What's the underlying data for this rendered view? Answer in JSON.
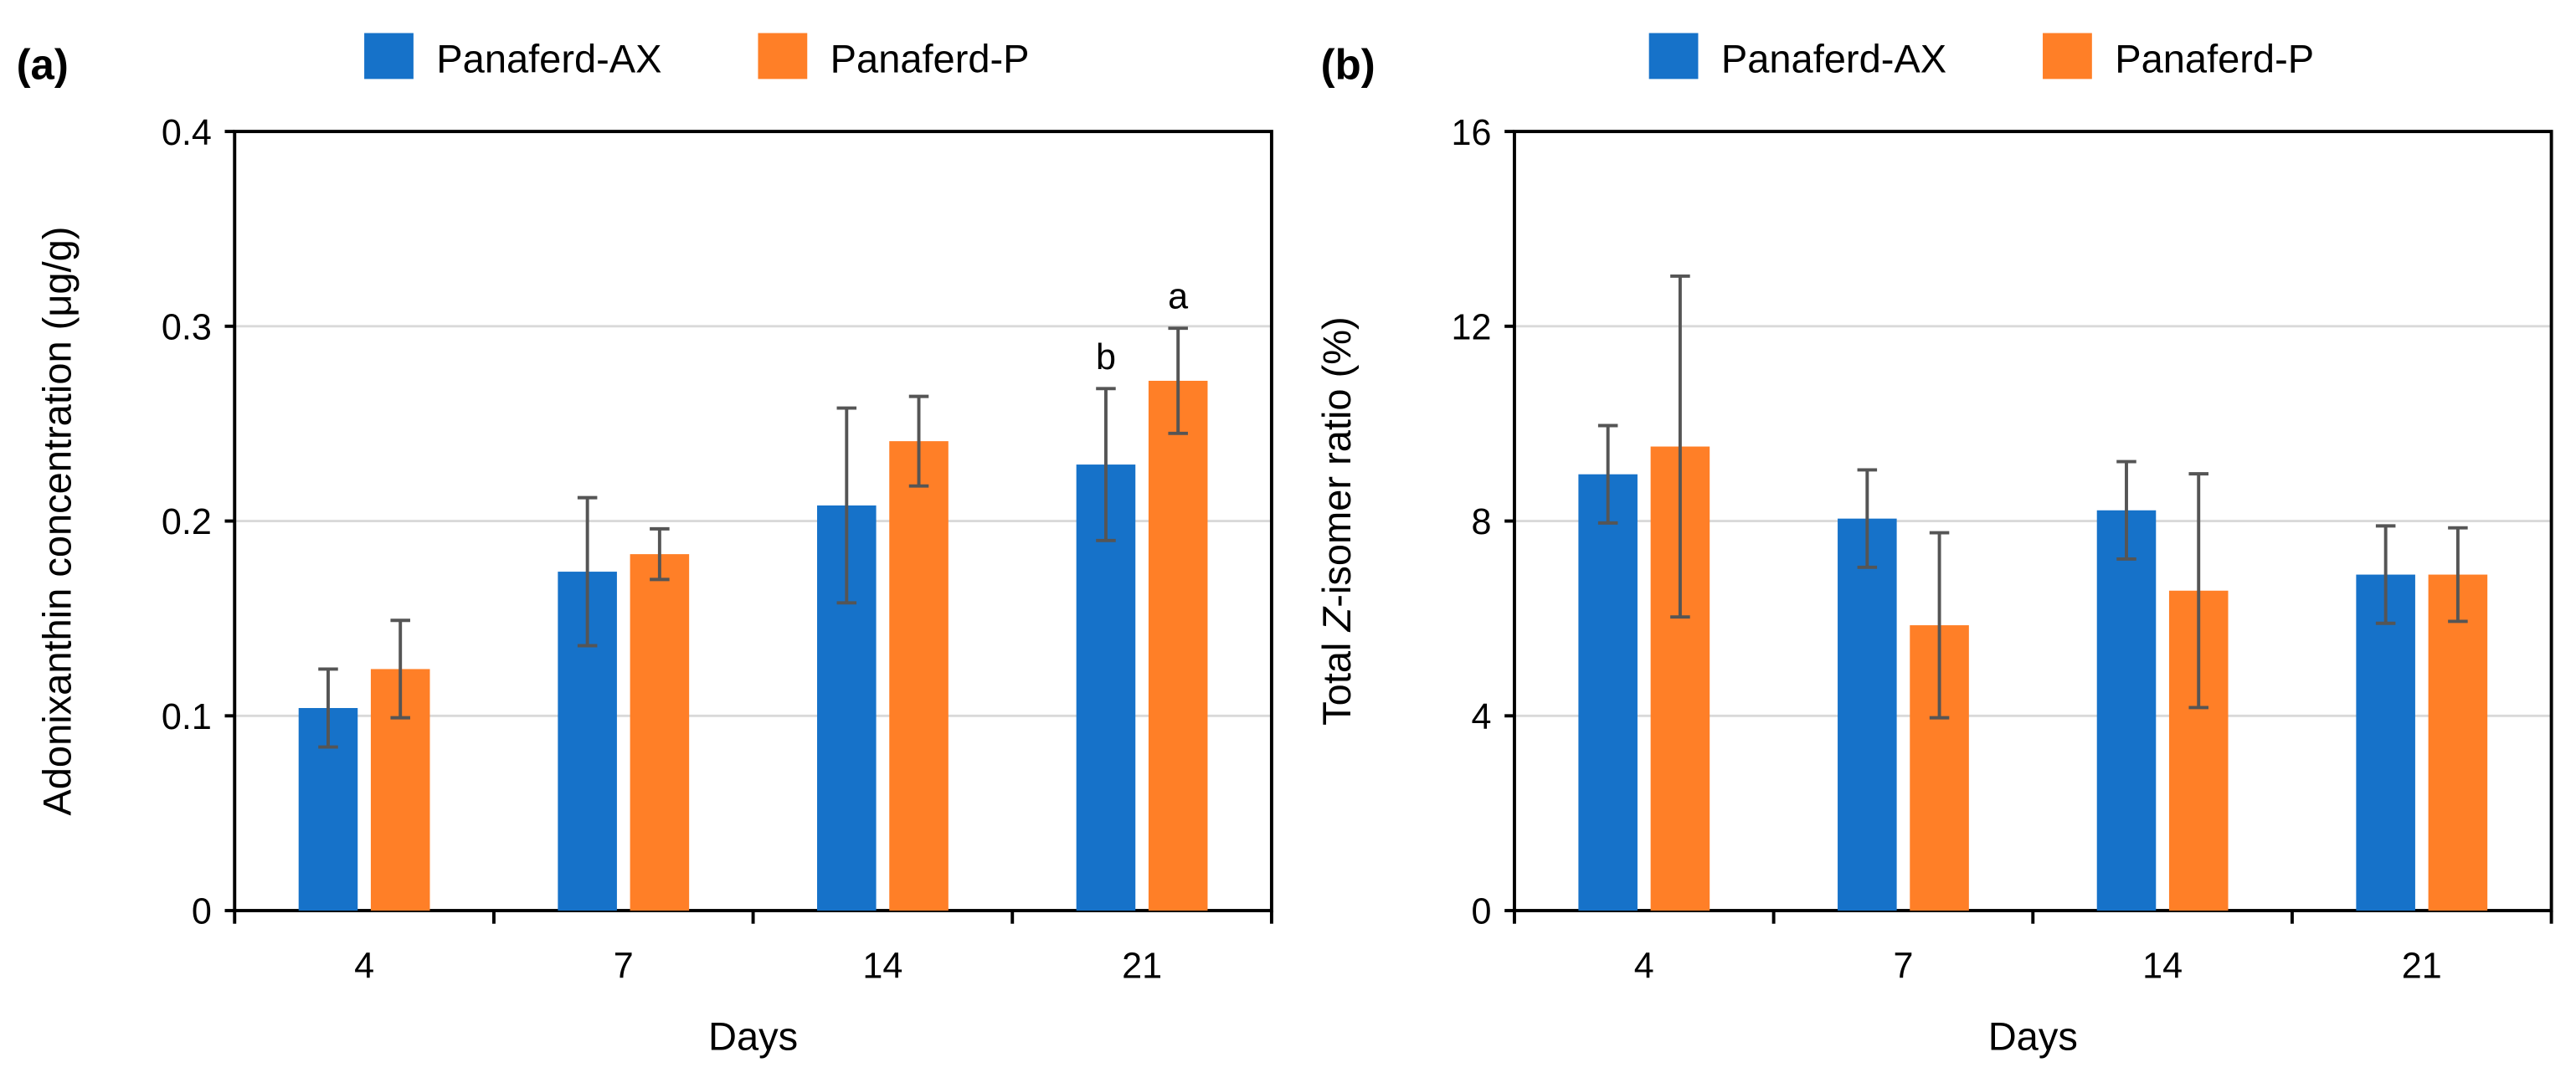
{
  "colors": {
    "Panaferd-AX": "#1672C9",
    "Panaferd-P": "#FF7F27",
    "error": "#555555",
    "grid": "#D9D9D9"
  },
  "chart_data": [
    {
      "panel": "(a)",
      "type": "bar",
      "categories": [
        "4",
        "7",
        "14",
        "21"
      ],
      "xlabel": "Days",
      "ylabel": "Adonixanthin concentration (μg/g)",
      "ylim": [
        0,
        0.4
      ],
      "yticks": [
        0,
        0.1,
        0.2,
        0.3,
        0.4
      ],
      "ytick_labels": [
        "0",
        "0.1",
        "0.2",
        "0.3",
        "0.4"
      ],
      "grid": true,
      "legend": "top",
      "series": [
        {
          "name": "Panaferd-AX",
          "values": [
            0.104,
            0.174,
            0.208,
            0.229
          ],
          "errors": [
            0.02,
            0.038,
            0.05,
            0.039
          ]
        },
        {
          "name": "Panaferd-P",
          "values": [
            0.124,
            0.183,
            0.241,
            0.272
          ],
          "errors": [
            0.025,
            0.013,
            0.023,
            0.027
          ]
        }
      ],
      "annotations": [
        {
          "category": "21",
          "series": "Panaferd-AX",
          "text": "b"
        },
        {
          "category": "21",
          "series": "Panaferd-P",
          "text": "a"
        }
      ]
    },
    {
      "panel": "(b)",
      "type": "bar",
      "categories": [
        "4",
        "7",
        "14",
        "21"
      ],
      "xlabel": "Days",
      "ylabel_prefix": "Total ",
      "ylabel_italic": "Z",
      "ylabel_suffix": "-isomer ratio (%)",
      "ylim": [
        0,
        16
      ],
      "yticks": [
        0,
        4,
        8,
        12,
        16
      ],
      "ytick_labels": [
        "0",
        "4",
        "8",
        "12",
        "16"
      ],
      "grid": true,
      "legend": "top",
      "series": [
        {
          "name": "Panaferd-AX",
          "values": [
            8.96,
            8.05,
            8.22,
            6.9
          ],
          "errors": [
            1.0,
            1.0,
            1.0,
            1.0
          ]
        },
        {
          "name": "Panaferd-P",
          "values": [
            9.53,
            5.86,
            6.57,
            6.9
          ],
          "errors": [
            3.5,
            1.9,
            2.4,
            0.96
          ]
        }
      ],
      "annotations": []
    }
  ]
}
